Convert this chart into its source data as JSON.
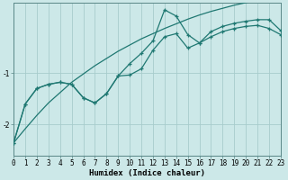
{
  "xlabel": "Humidex (Indice chaleur)",
  "bg_color": "#cce8e8",
  "line_color": "#1f7872",
  "grid_color": "#a8cccc",
  "line1": [
    -2.35,
    -2.08,
    -1.82,
    -1.58,
    -1.38,
    -1.18,
    -1.02,
    -0.86,
    -0.72,
    -0.58,
    -0.46,
    -0.34,
    -0.24,
    -0.14,
    -0.05,
    0.04,
    0.12,
    0.19,
    0.25,
    0.31,
    0.36,
    0.4,
    0.43,
    0.46
  ],
  "line2": [
    -2.35,
    -1.6,
    -1.3,
    -1.22,
    -1.18,
    -1.22,
    -1.48,
    -1.58,
    -1.4,
    -1.06,
    -1.04,
    -0.92,
    -0.56,
    -0.3,
    -0.24,
    -0.52,
    -0.42,
    -0.3,
    -0.2,
    -0.14,
    -0.1,
    -0.08,
    -0.14,
    -0.26
  ],
  "line3": [
    -2.35,
    -1.6,
    -1.3,
    -1.22,
    -1.18,
    -1.22,
    -1.48,
    -1.58,
    -1.4,
    -1.06,
    -0.82,
    -0.62,
    -0.38,
    0.22,
    0.1,
    -0.26,
    -0.42,
    -0.2,
    -0.1,
    -0.04,
    0.0,
    0.03,
    0.03,
    -0.18
  ],
  "xlim": [
    0,
    23
  ],
  "ylim": [
    -2.6,
    0.35
  ],
  "yticks": [
    -2,
    -1
  ],
  "xticks": [
    0,
    1,
    2,
    3,
    4,
    5,
    6,
    7,
    8,
    9,
    10,
    11,
    12,
    13,
    14,
    15,
    16,
    17,
    18,
    19,
    20,
    21,
    22,
    23
  ],
  "figsize": [
    3.2,
    2.0
  ],
  "dpi": 100
}
